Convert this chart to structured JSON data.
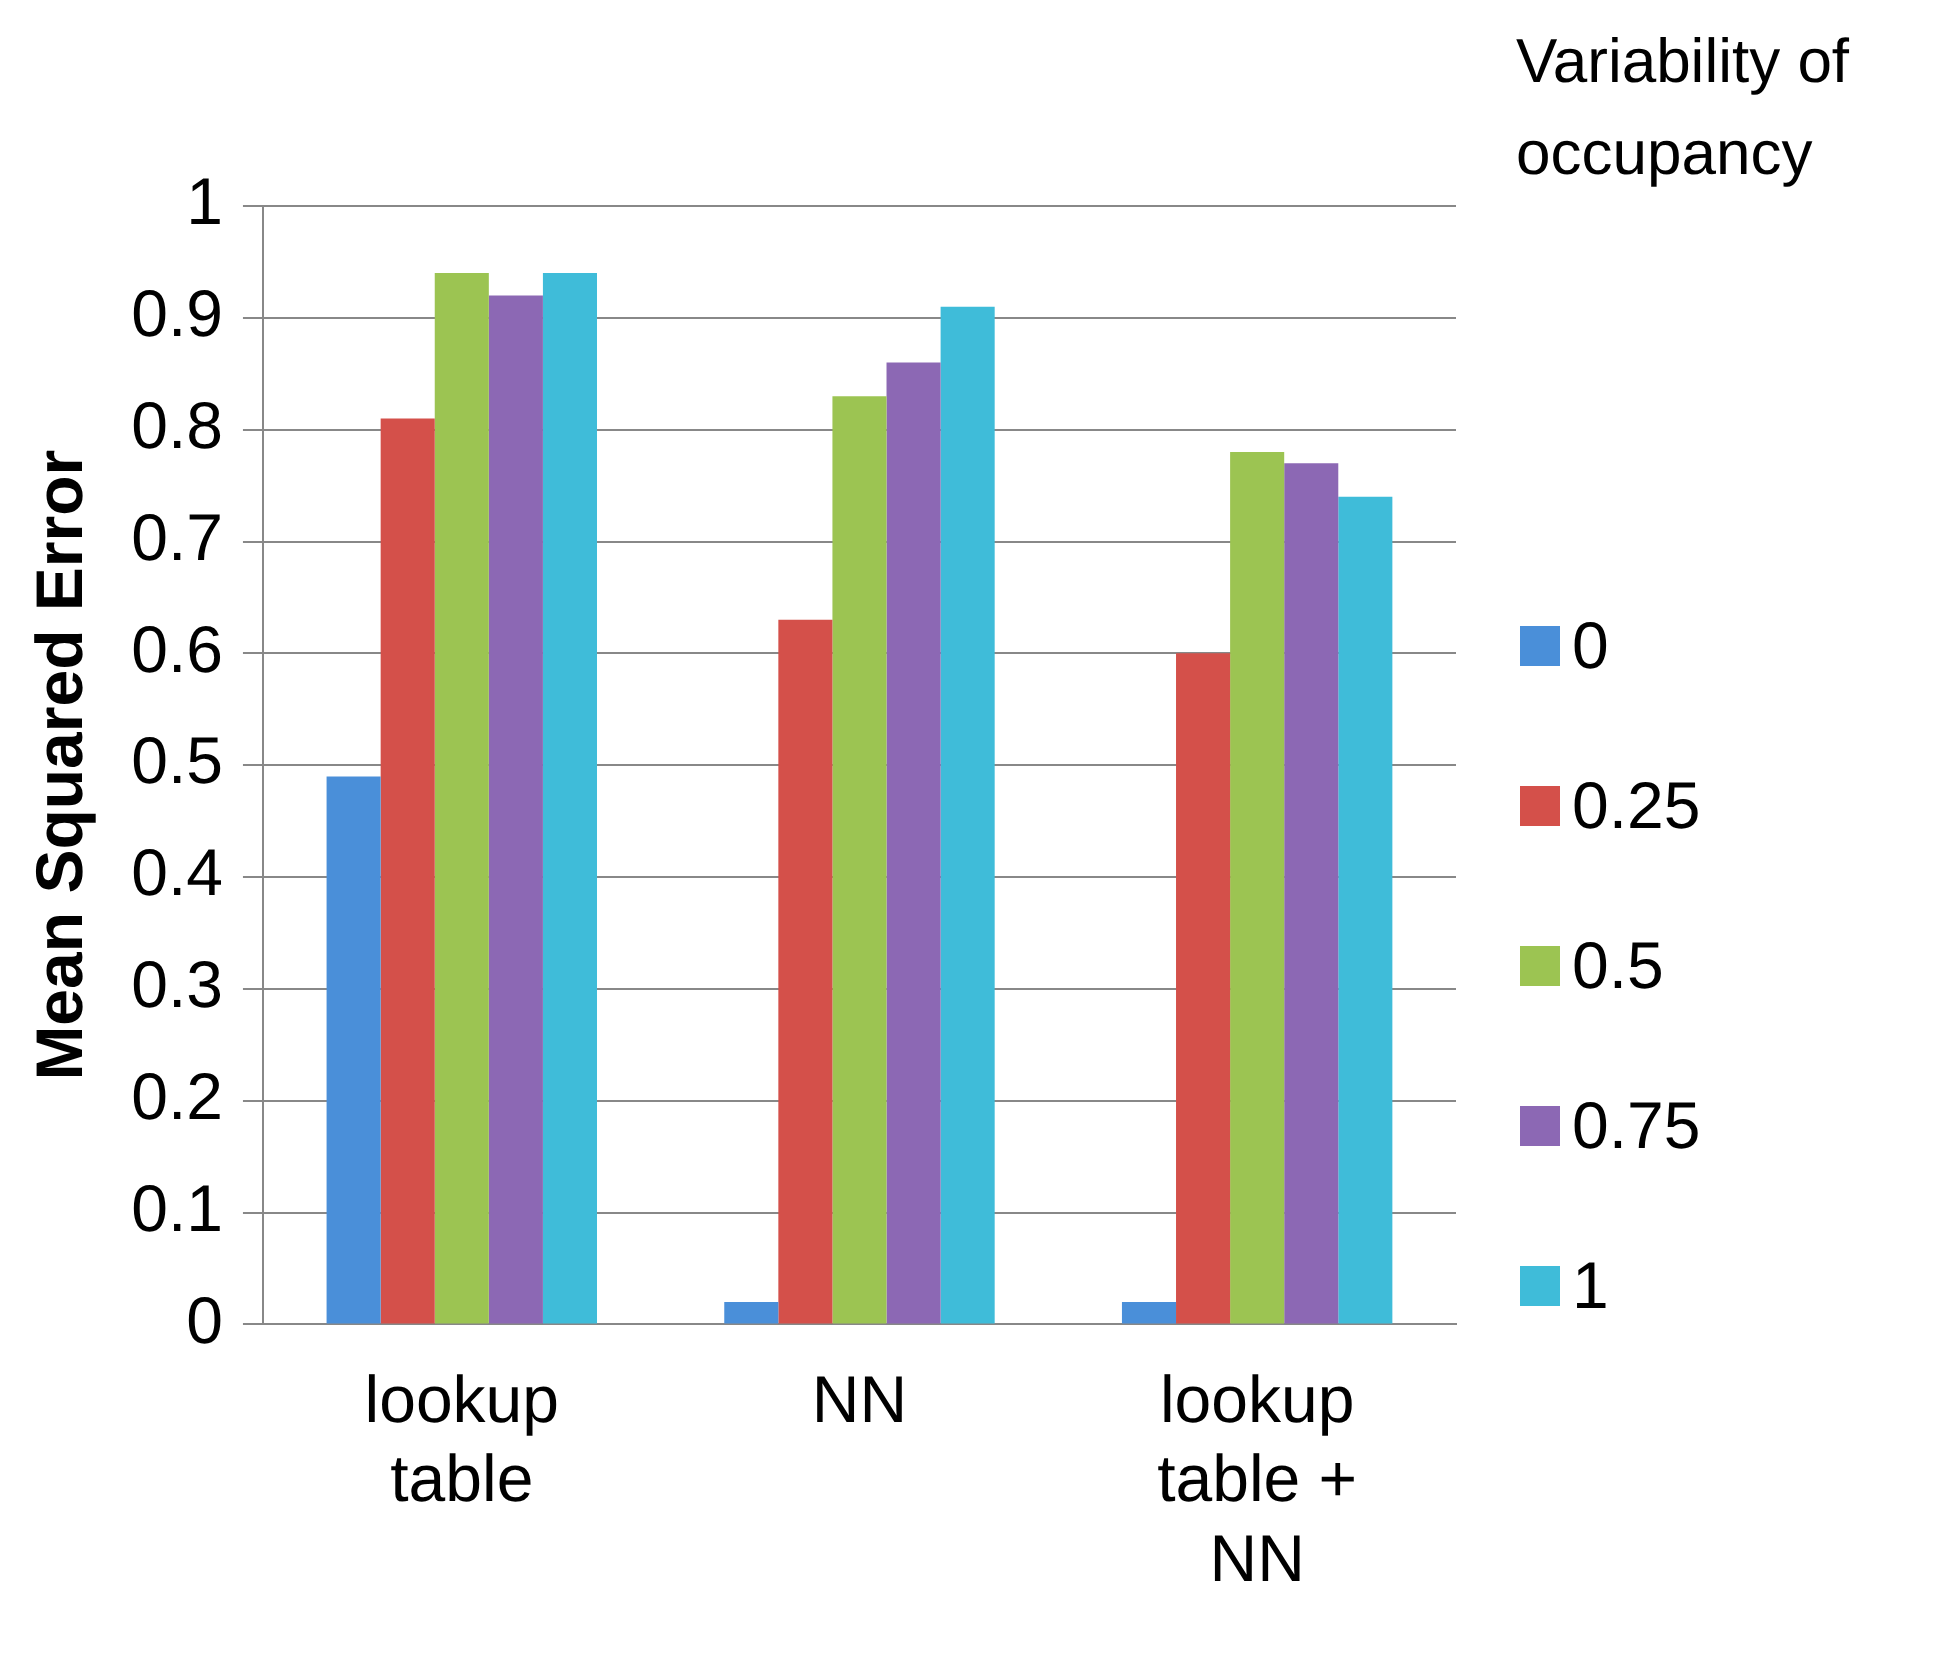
{
  "chart_data": {
    "type": "bar",
    "ylabel": "Mean Squared Error",
    "legend_title": "Variability of occupancy",
    "categories": [
      "lookup table",
      "NN",
      "lookup table + NN"
    ],
    "series": [
      {
        "name": "0",
        "color": "#4a8fd9",
        "values": [
          0.49,
          0.02,
          0.02
        ]
      },
      {
        "name": "0.25",
        "color": "#d4504a",
        "values": [
          0.81,
          0.63,
          0.6
        ]
      },
      {
        "name": "0.5",
        "color": "#9cc452",
        "values": [
          0.94,
          0.83,
          0.78
        ]
      },
      {
        "name": "0.75",
        "color": "#8c68b4",
        "values": [
          0.92,
          0.86,
          0.77
        ]
      },
      {
        "name": "1",
        "color": "#3fbcd9",
        "values": [
          0.94,
          0.91,
          0.74
        ]
      }
    ],
    "ylim": [
      0,
      1
    ],
    "yticks": [
      0,
      0.1,
      0.2,
      0.3,
      0.4,
      0.5,
      0.6,
      0.7,
      0.8,
      0.9,
      1
    ],
    "grid": "y",
    "legend": "right"
  }
}
